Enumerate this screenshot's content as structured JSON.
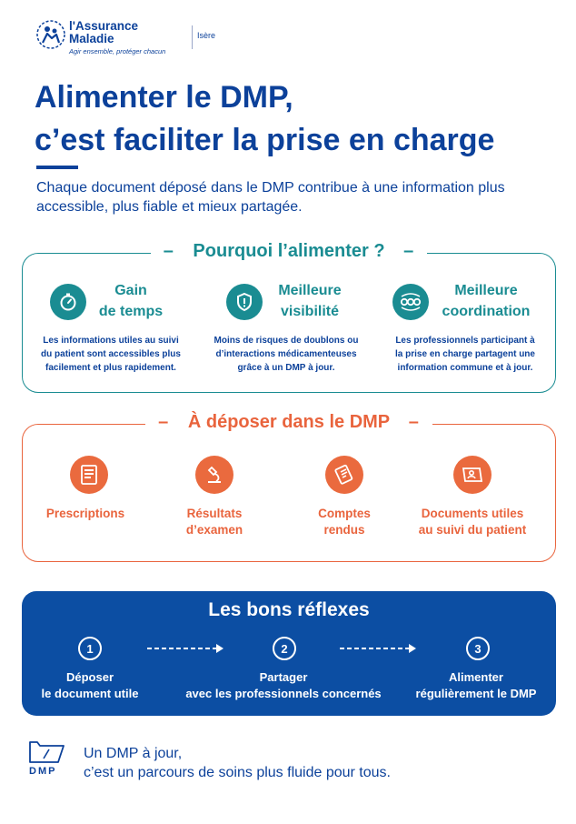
{
  "header": {
    "logo_name_line1": "l'Assurance",
    "logo_name_line2": "Maladie",
    "logo_slogan": "Agir ensemble, protéger chacun",
    "region": "Isère"
  },
  "title_line1": "Alimenter le DMP,",
  "title_line2": "c’est faciliter la prise en charge",
  "intro": "Chaque document déposé dans le DMP contribue à une information plus accessible, plus fiable et mieux partagée.",
  "why": {
    "heading": "Pourquoi l’alimenter ?",
    "items": [
      {
        "icon": "stopwatch-icon",
        "title_l1": "Gain",
        "title_l2": "de temps",
        "desc_l1": "Les informations utiles au suivi",
        "desc_l2": "du patient sont accessibles plus",
        "desc_l3": "facilement et plus rapidement."
      },
      {
        "icon": "shield-alert-icon",
        "title_l1": "Meilleure",
        "title_l2": "visibilité",
        "desc_l1": "Moins de risques de doublons ou",
        "desc_l2": "d’interactions médicamenteuses",
        "desc_l3": "grâce à un DMP à jour."
      },
      {
        "icon": "network-people-icon",
        "title_l1": "Meilleure",
        "title_l2": "coordination",
        "desc_l1": "Les professionnels participant à",
        "desc_l2": "la prise en charge partagent une",
        "desc_l3": "information commune et à jour."
      }
    ]
  },
  "deposit": {
    "heading": "À déposer dans le DMP",
    "items": [
      {
        "icon": "prescription-icon",
        "label_l1": "Prescriptions",
        "label_l2": ""
      },
      {
        "icon": "microscope-icon",
        "label_l1": "Résultats",
        "label_l2": "d’examen"
      },
      {
        "icon": "report-icon",
        "label_l1": "Comptes",
        "label_l2": "rendus"
      },
      {
        "icon": "patient-document-icon",
        "label_l1": "Documents utiles",
        "label_l2": "au suivi du patient"
      }
    ]
  },
  "reflexes": {
    "heading": "Les bons réflexes",
    "steps": [
      {
        "num": "1",
        "l1": "Déposer",
        "l2": "le document utile"
      },
      {
        "num": "2",
        "l1": "Partager",
        "l2": "avec les professionnels concernés"
      },
      {
        "num": "3",
        "l1": "Alimenter",
        "l2": "régulièrement le DMP"
      }
    ]
  },
  "footer": {
    "dmp_logo": "DMP",
    "line1": "Un DMP à jour,",
    "line2": "c’est un parcours de soins plus fluide pour tous."
  },
  "colors": {
    "blue": "#0c419a",
    "teal": "#1a8c92",
    "orange": "#e9643d",
    "box": "#0c4ea3"
  }
}
